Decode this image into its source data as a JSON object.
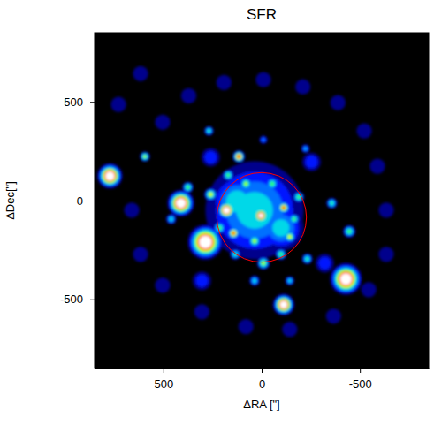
{
  "chart_data": {
    "type": "heatmap",
    "title": "SFR",
    "x_label": "ΔRA [\"]",
    "y_label": "ΔDec[\"]",
    "xlim": [
      850,
      -850
    ],
    "ylim": [
      -850,
      850
    ],
    "xticks": [
      500,
      0,
      -500
    ],
    "yticks": [
      -500,
      0,
      500
    ],
    "x": [
      504,
      371,
      192,
      -9,
      -210,
      -388,
      -522,
      -589,
      -634,
      -634,
      -545,
      -366,
      -143,
      80,
      304,
      504,
      616,
      661,
      728,
      616,
      259,
      -254,
      304,
      -321,
      36,
      125,
      -98,
      179,
      4,
      143,
      -112,
      80,
      -54,
      259,
      214,
      36,
      -143,
      -98,
      -9,
      134,
      -188,
      -165,
      170,
      116,
      375,
      411,
      286,
      772,
      594,
      -429,
      -112,
      -357,
      -446,
      -232,
      36,
      268,
      -223,
      -9,
      460,
      -143
    ],
    "y": [
      397,
      531,
      598,
      612,
      576,
      496,
      353,
      174,
      -49,
      -272,
      -451,
      -585,
      -652,
      -638,
      -563,
      -429,
      -272,
      -49,
      487,
      643,
      219,
      196,
      -406,
      -317,
      -49,
      -4,
      -138,
      -49,
      -76,
      -165,
      -36,
      85,
      85,
      31,
      -138,
      -205,
      -183,
      -272,
      -317,
      -272,
      18,
      -94,
      129,
      223,
      67,
      -13,
      -210,
      125,
      223,
      -397,
      -527,
      -13,
      -156,
      -295,
      -406,
      353,
      263,
      308,
      -94,
      -406
    ],
    "values": [
      0.16,
      0.16,
      0.16,
      0.16,
      0.16,
      0.16,
      0.16,
      0.16,
      0.16,
      0.16,
      0.16,
      0.16,
      0.16,
      0.16,
      0.16,
      0.16,
      0.16,
      0.16,
      0.16,
      0.16,
      0.25,
      0.25,
      0.25,
      0.25,
      0.4,
      0.42,
      0.4,
      1.0,
      0.9,
      0.72,
      0.72,
      0.55,
      0.5,
      0.58,
      0.5,
      0.55,
      0.6,
      0.5,
      0.55,
      0.45,
      0.5,
      0.5,
      0.5,
      0.75,
      0.5,
      1.0,
      1.0,
      1.0,
      0.55,
      1.0,
      0.95,
      0.45,
      0.5,
      0.45,
      0.4,
      0.45,
      0.35,
      0.3,
      0.4,
      0.4
    ],
    "size": [
      40,
      40,
      40,
      40,
      40,
      40,
      40,
      40,
      40,
      40,
      40,
      40,
      40,
      40,
      40,
      40,
      40,
      40,
      40,
      40,
      35,
      35,
      35,
      35,
      150,
      80,
      70,
      22,
      20,
      16,
      16,
      18,
      18,
      18,
      18,
      18,
      16,
      16,
      18,
      16,
      16,
      16,
      16,
      16,
      16,
      32,
      42,
      30,
      14,
      38,
      26,
      16,
      18,
      16,
      16,
      14,
      14,
      14,
      16,
      14
    ],
    "region": {
      "x": 0,
      "y": -85,
      "radius": 228,
      "color": "#ff0000"
    }
  }
}
